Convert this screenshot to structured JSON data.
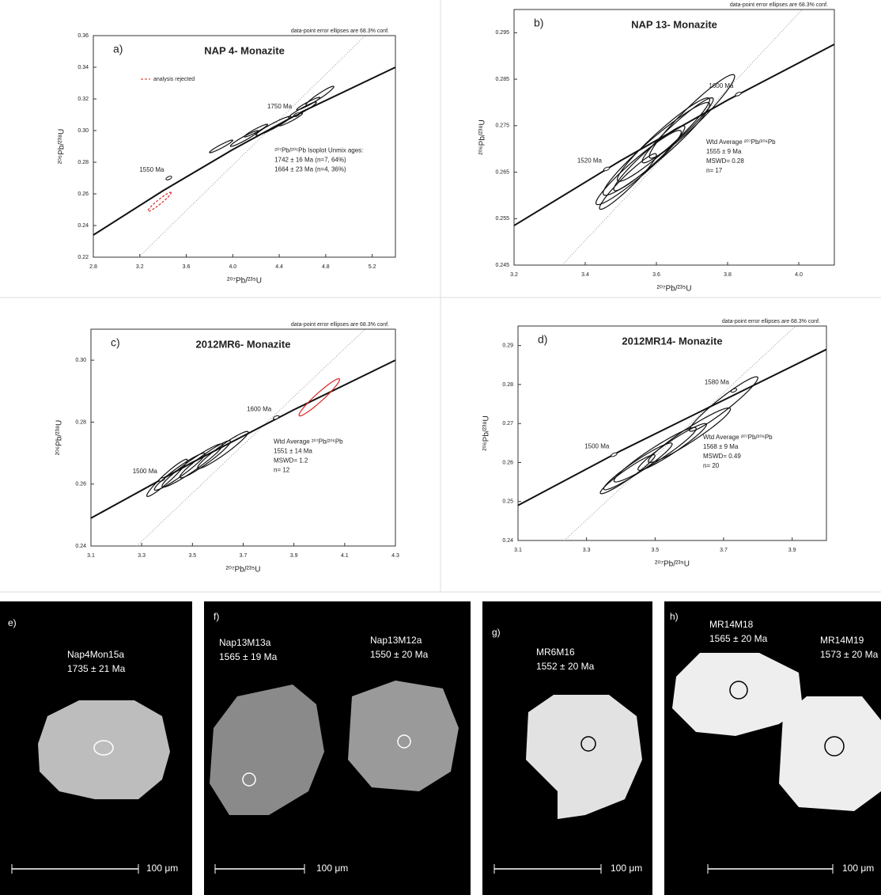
{
  "chart_data": [
    {
      "type": "concordia",
      "panel": "a)",
      "title": "NAP 4- Monazite",
      "note": "data-point error ellipses are 68.3% conf.",
      "x_label": "²⁰⁷Pb/²³⁵U",
      "y_label": "²⁰⁶Pb/²³⁸U",
      "xlim": [
        2.8,
        5.4
      ],
      "ylim": [
        0.22,
        0.36
      ],
      "xticks": [
        2.8,
        3.2,
        3.6,
        {
          "value": 4,
          "label": "4.0"
        },
        4.4,
        4.8,
        5.2
      ],
      "yticks": [
        0.22,
        0.24,
        0.26,
        0.28,
        {
          "value": 0.3,
          "label": "0.30"
        },
        0.32,
        0.34,
        0.36
      ],
      "concordia": {
        "x": [
          2.8,
          3.4,
          4.0,
          4.6,
          5.4
        ],
        "y": [
          0.234,
          0.262,
          0.288,
          0.312,
          0.34
        ]
      },
      "age_markers": [
        {
          "label": "1550 Ma",
          "x": 3.45,
          "y": 0.27
        },
        {
          "label": "1750 Ma",
          "x": 4.55,
          "y": 0.31
        }
      ],
      "ellipses": [
        {
          "x": 3.9,
          "y": 0.29,
          "x_err": 0.1,
          "y_err": 0.004
        },
        {
          "x": 4.1,
          "y": 0.295,
          "x_err": 0.12,
          "y_err": 0.005
        },
        {
          "x": 4.2,
          "y": 0.3,
          "x_err": 0.1,
          "y_err": 0.004
        },
        {
          "x": 4.35,
          "y": 0.303,
          "x_err": 0.15,
          "y_err": 0.006
        },
        {
          "x": 4.5,
          "y": 0.307,
          "x_err": 0.1,
          "y_err": 0.004
        },
        {
          "x": 4.6,
          "y": 0.313,
          "x_err": 0.12,
          "y_err": 0.005
        },
        {
          "x": 4.75,
          "y": 0.322,
          "x_err": 0.12,
          "y_err": 0.006
        },
        {
          "x": 4.65,
          "y": 0.317,
          "x_err": 0.1,
          "y_err": 0.004
        }
      ],
      "color": "#111",
      "rejected": {
        "name": "analysis rejected",
        "color": "#d22",
        "ellipses": [
          {
            "x": 3.37,
            "y": 0.255,
            "x_err": 0.1,
            "y_err": 0.006
          }
        ]
      },
      "annotation": [
        "²⁰⁷Pb/²⁰⁶Pb Isoplot Unmix ages:",
        "1742 ± 16 Ma (n=7, 64%)",
        "1664 ± 23 Ma (n=4, 36%)"
      ]
    },
    {
      "type": "concordia",
      "panel": "b)",
      "title": "NAP 13- Monazite",
      "note": "data-point error ellipses are 68.3% conf.",
      "x_label": "²⁰⁷Pb/²³⁵U",
      "y_label": "²⁰⁶Pb/²³⁸U",
      "xlim": [
        3.2,
        4.1
      ],
      "ylim": [
        0.245,
        0.3
      ],
      "xticks": [
        3.2,
        3.4,
        3.6,
        3.8,
        {
          "value": 4,
          "label": "4.0"
        }
      ],
      "yticks": [
        0.245,
        0.255,
        0.265,
        0.275,
        0.285,
        0.295
      ],
      "concordia": {
        "x": [
          3.2,
          3.5,
          3.8,
          4.1
        ],
        "y": [
          0.2535,
          0.2675,
          0.2805,
          0.2925
        ]
      },
      "age_markers": [
        {
          "label": "1520 Ma",
          "x": 3.46,
          "y": 0.2657
        },
        {
          "label": "1600 Ma",
          "x": 3.83,
          "y": 0.2818
        }
      ],
      "ellipses": [
        {
          "x": 3.55,
          "y": 0.266,
          "x_err": 0.12,
          "y_err": 0.008
        },
        {
          "x": 3.6,
          "y": 0.27,
          "x_err": 0.15,
          "y_err": 0.01
        },
        {
          "x": 3.62,
          "y": 0.272,
          "x_err": 0.13,
          "y_err": 0.009
        },
        {
          "x": 3.58,
          "y": 0.268,
          "x_err": 0.1,
          "y_err": 0.007
        },
        {
          "x": 3.66,
          "y": 0.274,
          "x_err": 0.1,
          "y_err": 0.007
        },
        {
          "x": 3.7,
          "y": 0.277,
          "x_err": 0.12,
          "y_err": 0.009
        },
        {
          "x": 3.52,
          "y": 0.263,
          "x_err": 0.08,
          "y_err": 0.006
        }
      ],
      "color": "#111",
      "annotation": [
        "Wtd Average ²⁰⁷Pb/²⁰⁶Pb",
        "1555 ± 9 Ma",
        "MSWD= 0.28",
        "n= 17"
      ]
    },
    {
      "type": "concordia",
      "panel": "c)",
      "title": "2012MR6- Monazite",
      "note": "data-point error ellipses are 68.3% conf.",
      "x_label": "²⁰⁷Pb/²³⁵U",
      "y_label": "²⁰⁶Pb/²³⁸U",
      "xlim": [
        3.1,
        4.3
      ],
      "ylim": [
        0.24,
        0.31
      ],
      "xticks": [
        3.1,
        3.3,
        3.5,
        3.7,
        3.9,
        4.1,
        4.3
      ],
      "yticks": [
        0.24,
        0.26,
        0.28,
        {
          "value": 0.3,
          "label": "0.30"
        }
      ],
      "concordia": {
        "x": [
          3.1,
          3.5,
          3.9,
          4.3
        ],
        "y": [
          0.249,
          0.267,
          0.284,
          0.3
        ]
      },
      "age_markers": [
        {
          "label": "1500 Ma",
          "x": 3.38,
          "y": 0.2615
        },
        {
          "label": "1600 Ma",
          "x": 3.83,
          "y": 0.2815
        }
      ],
      "ellipses": [
        {
          "x": 3.45,
          "y": 0.264,
          "x_err": 0.1,
          "y_err": 0.006
        },
        {
          "x": 3.5,
          "y": 0.266,
          "x_err": 0.12,
          "y_err": 0.007
        },
        {
          "x": 3.55,
          "y": 0.268,
          "x_err": 0.1,
          "y_err": 0.006
        },
        {
          "x": 3.62,
          "y": 0.271,
          "x_err": 0.1,
          "y_err": 0.006
        },
        {
          "x": 3.4,
          "y": 0.262,
          "x_err": 0.08,
          "y_err": 0.006
        }
      ],
      "color": "#111",
      "rejected": {
        "color": "#d22",
        "ellipses": [
          {
            "x": 4.0,
            "y": 0.288,
            "x_err": 0.08,
            "y_err": 0.006
          }
        ]
      },
      "annotation": [
        "Wtd Average ²⁰⁷Pb/²⁰⁶Pb",
        "1551 ± 14 Ma",
        "MSWD= 1.2",
        "n= 12"
      ]
    },
    {
      "type": "concordia",
      "panel": "d)",
      "title": "2012MR14- Monazite",
      "note": "data-point error ellipses are 68.3% conf.",
      "x_label": "²⁰⁷Pb/²³⁵U",
      "y_label": "²⁰⁶Pb/²³⁸U",
      "xlim": [
        3.1,
        4.0
      ],
      "ylim": [
        0.24,
        0.295
      ],
      "xticks": [
        3.1,
        3.3,
        3.5,
        3.7,
        3.9
      ],
      "yticks": [
        0.24,
        0.25,
        0.26,
        0.27,
        0.28,
        0.29
      ],
      "concordia": {
        "x": [
          3.1,
          3.4,
          3.7,
          4.0
        ],
        "y": [
          0.249,
          0.263,
          0.276,
          0.289
        ]
      },
      "age_markers": [
        {
          "label": "1500 Ma",
          "x": 3.38,
          "y": 0.262
        },
        {
          "label": "1580 Ma",
          "x": 3.73,
          "y": 0.2785
        }
      ],
      "ellipses": [
        {
          "x": 3.45,
          "y": 0.259,
          "x_err": 0.1,
          "y_err": 0.006
        },
        {
          "x": 3.5,
          "y": 0.262,
          "x_err": 0.12,
          "y_err": 0.007
        },
        {
          "x": 3.55,
          "y": 0.264,
          "x_err": 0.1,
          "y_err": 0.006
        },
        {
          "x": 3.6,
          "y": 0.267,
          "x_err": 0.12,
          "y_err": 0.007
        },
        {
          "x": 3.7,
          "y": 0.275,
          "x_err": 0.1,
          "y_err": 0.007
        },
        {
          "x": 3.42,
          "y": 0.257,
          "x_err": 0.08,
          "y_err": 0.005
        }
      ],
      "color": "#111",
      "annotation": [
        "Wtd Average ²⁰⁷Pb/²⁰⁶Pb",
        "1568 ± 9 Ma",
        "MSWD= 0.49",
        "n= 20"
      ]
    }
  ],
  "images": [
    {
      "label": "e)",
      "grains": [
        {
          "name": "Nap4Mon15a",
          "age": "1735 ± 21 Ma"
        }
      ],
      "scale": "100 μm"
    },
    {
      "label": "f)",
      "grains": [
        {
          "name": "Nap13M13a",
          "age": "1565 ± 19 Ma"
        },
        {
          "name": "Nap13M12a",
          "age": "1550 ± 20 Ma"
        }
      ],
      "scale": "100 μm"
    },
    {
      "label": "g)",
      "grains": [
        {
          "name": "MR6M16",
          "age": "1552 ± 20 Ma"
        }
      ],
      "scale": "100 μm"
    },
    {
      "label": "h)",
      "grains": [
        {
          "name": "MR14M18",
          "age": "1565 ± 20 Ma"
        },
        {
          "name": "MR14M19",
          "age": "1573 ± 20 Ma"
        }
      ],
      "scale": "100 μm"
    }
  ]
}
